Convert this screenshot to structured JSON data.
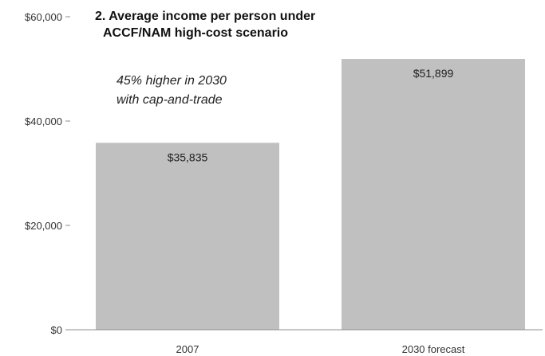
{
  "chart_data": {
    "type": "bar",
    "title_line1": "2. Average income per person under",
    "title_line2": "ACCF/NAM high-cost scenario",
    "annotation_line1": "45% higher in 2030",
    "annotation_line2": "with cap-and-trade",
    "categories": [
      "2007",
      "2030 forecast"
    ],
    "values": [
      35835,
      51899
    ],
    "data_labels": [
      "$35,835",
      "$51,899"
    ],
    "ylim": [
      0,
      60000
    ],
    "yticks": [
      0,
      20000,
      40000,
      60000
    ],
    "ytick_labels": [
      "$0",
      "$20,000",
      "$40,000",
      "$60,000"
    ],
    "xlabel": "",
    "ylabel": "",
    "grid": false,
    "bar_color": "#c0c0c0",
    "axis_color": "#8c8c8c"
  }
}
